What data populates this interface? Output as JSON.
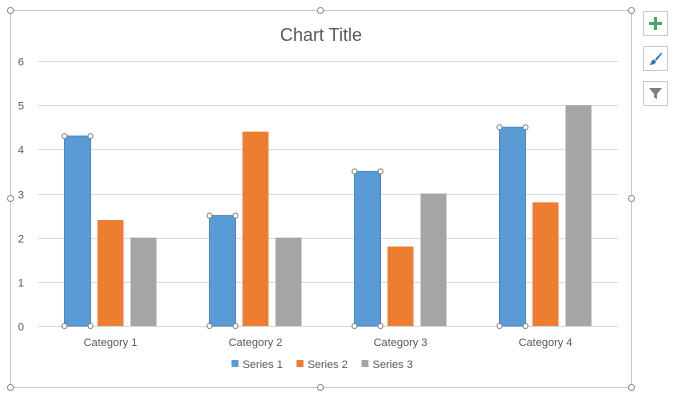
{
  "toolbar": {
    "chart_elements_icon": "plus-icon",
    "chart_styles_icon": "paintbrush-icon",
    "chart_filters_icon": "filter-icon"
  },
  "chart_data": {
    "type": "bar",
    "title": "Chart Title",
    "categories": [
      "Category 1",
      "Category 2",
      "Category 3",
      "Category 4"
    ],
    "series": [
      {
        "name": "Series 1",
        "values": [
          4.3,
          2.5,
          3.5,
          4.5
        ],
        "color": "#5b9bd5"
      },
      {
        "name": "Series 2",
        "values": [
          2.4,
          4.4,
          1.8,
          2.8
        ],
        "color": "#ed7d31"
      },
      {
        "name": "Series 3",
        "values": [
          2,
          2,
          3,
          5
        ],
        "color": "#a5a5a5"
      }
    ],
    "ylim": [
      0,
      6
    ],
    "yticks": [
      "0",
      "1",
      "2",
      "3",
      "4",
      "5",
      "6"
    ],
    "grid": true,
    "legend": "bottom",
    "selected_series": "Series 1",
    "colors": {
      "gridline": "#d9d9d9",
      "axis_text": "#595959",
      "frame": "#c8c8c8",
      "accent_plus": "#4aa564",
      "accent_brush": "#2e75b6"
    }
  }
}
